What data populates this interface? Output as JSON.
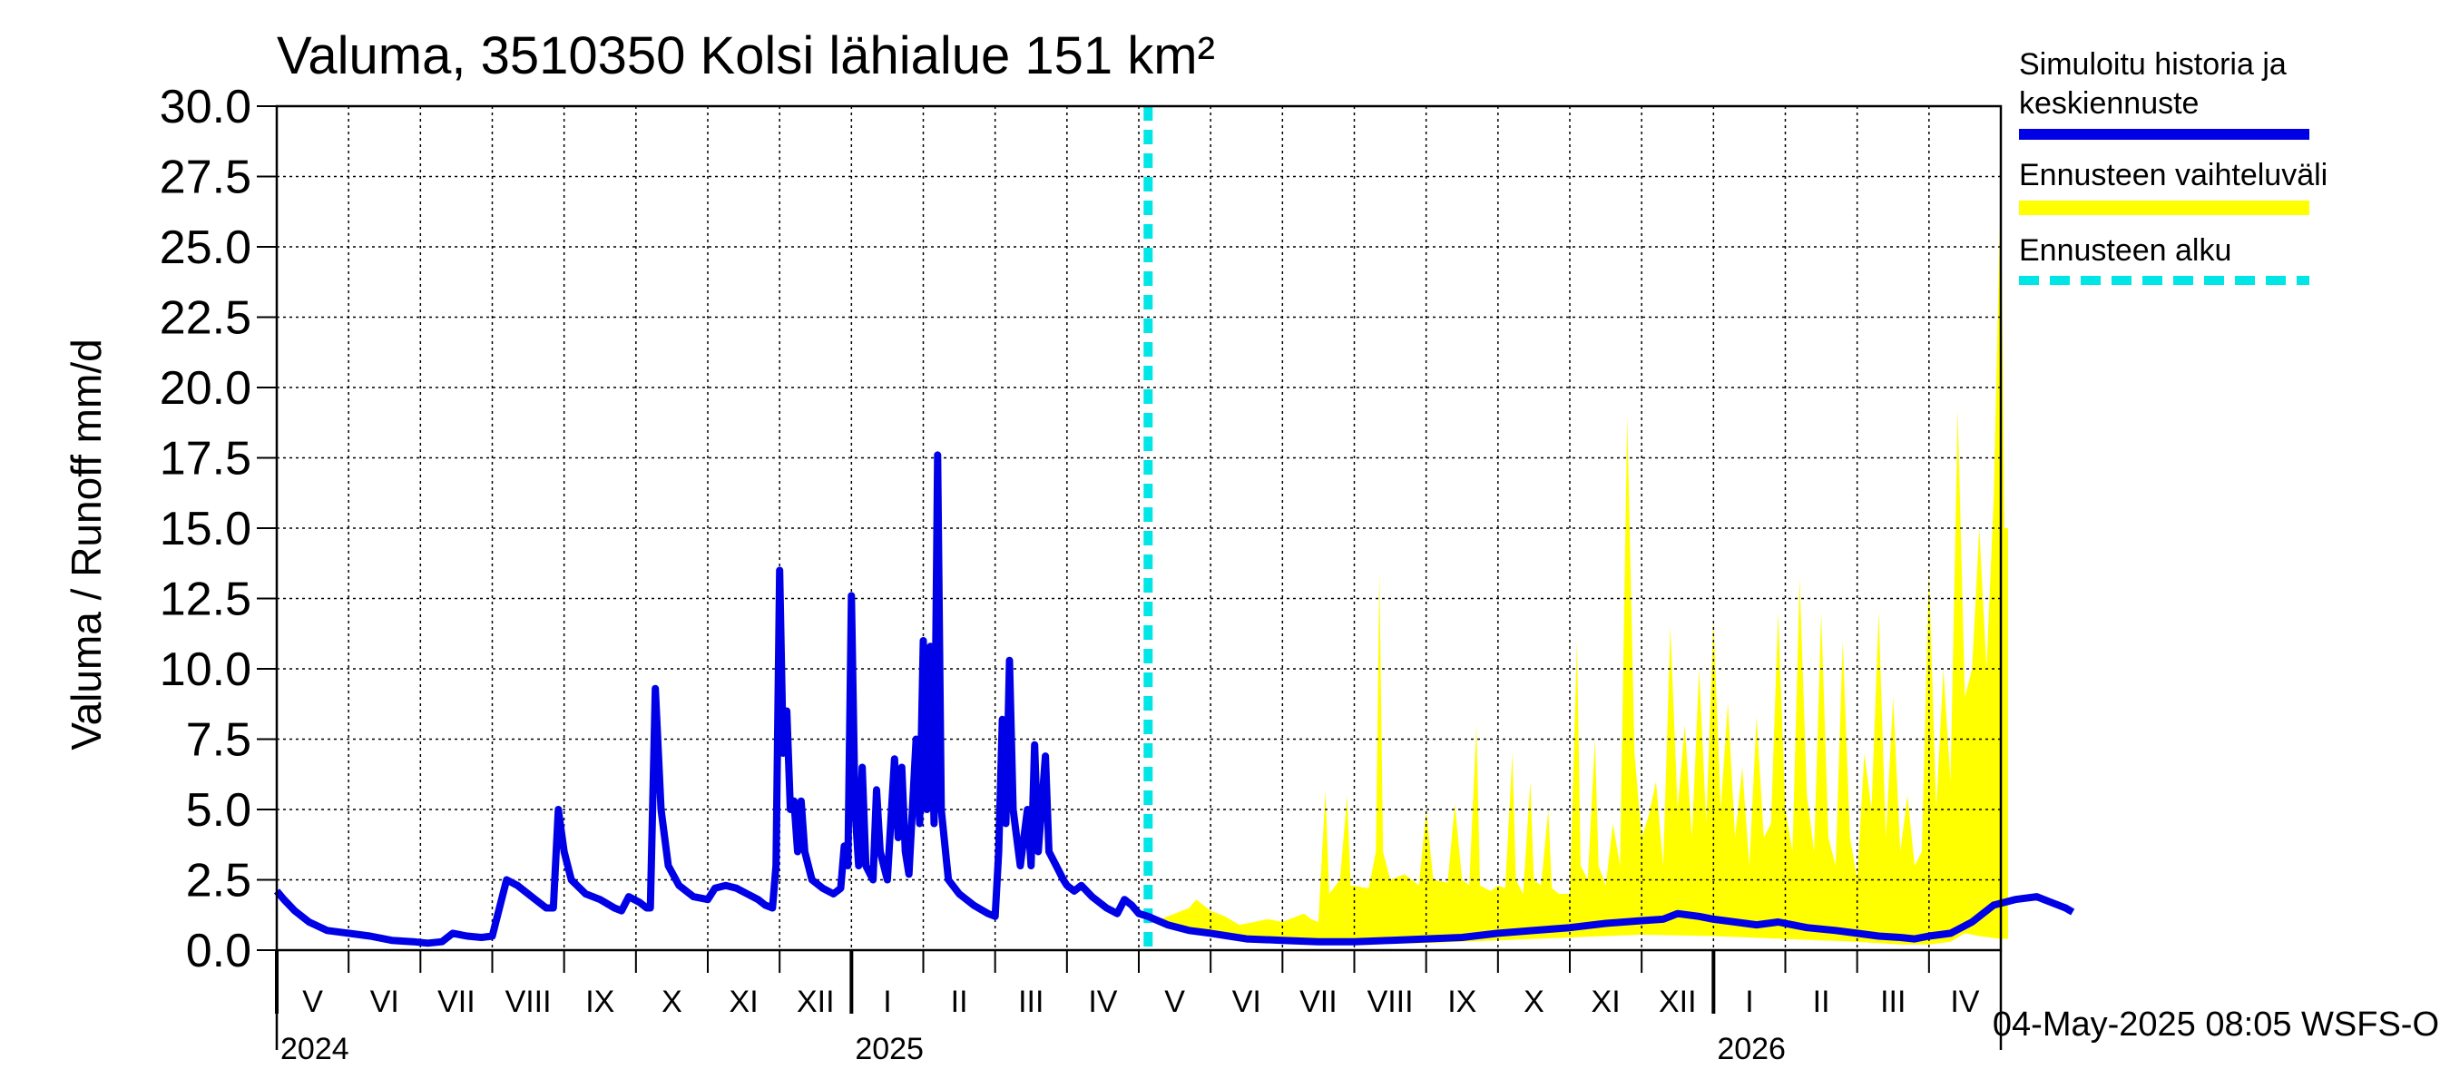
{
  "title": "Valuma, 3510350 Kolsi lähialue 151 km²",
  "ylabel": "Valuma / Runoff     mm/d",
  "footer": "04-May-2025 08:05 WSFS-O",
  "legend": [
    {
      "label": "Simuloitu historia ja\nkeskiennuste",
      "color": "#0000e6",
      "style": "solid"
    },
    {
      "label": "Ennusteen vaihteluväli",
      "color": "#ffff00",
      "style": "solid"
    },
    {
      "label": "Ennusteen alku",
      "color": "#00e5e5",
      "style": "dashed"
    }
  ],
  "colors": {
    "history": "#0000e6",
    "range": "#ffff00",
    "forecast_start": "#00e5e5",
    "grid": "#000000"
  },
  "chart_data": {
    "type": "area",
    "ylim": [
      0,
      30
    ],
    "yticks": [
      "0.0",
      "2.5",
      "5.0",
      "7.5",
      "10.0",
      "12.5",
      "15.0",
      "17.5",
      "20.0",
      "22.5",
      "25.0",
      "27.5",
      "30.0"
    ],
    "months": [
      "V",
      "VI",
      "VII",
      "VIII",
      "IX",
      "X",
      "XI",
      "XII",
      "I",
      "II",
      "III",
      "IV",
      "V",
      "VI",
      "VII",
      "VIII",
      "IX",
      "X",
      "XI",
      "XII",
      "I",
      "II",
      "III",
      "IV"
    ],
    "years": [
      {
        "label": "2024",
        "month_index": 0
      },
      {
        "label": "2025",
        "month_index": 8
      },
      {
        "label": "2026",
        "month_index": 20
      }
    ],
    "forecast_start": "2025-05-04",
    "grid": true,
    "legend_position": "right",
    "series": [
      {
        "name": "Simuloitu historia ja keskiennuste",
        "points": [
          [
            0,
            2.1
          ],
          [
            0.1,
            1.8
          ],
          [
            0.25,
            1.4
          ],
          [
            0.45,
            1.0
          ],
          [
            0.7,
            0.7
          ],
          [
            1.0,
            0.6
          ],
          [
            1.3,
            0.5
          ],
          [
            1.6,
            0.35
          ],
          [
            1.9,
            0.3
          ],
          [
            2.1,
            0.25
          ],
          [
            2.3,
            0.3
          ],
          [
            2.45,
            0.6
          ],
          [
            2.65,
            0.5
          ],
          [
            2.85,
            0.45
          ],
          [
            3.0,
            0.5
          ],
          [
            3.1,
            1.5
          ],
          [
            3.2,
            2.5
          ],
          [
            3.35,
            2.3
          ],
          [
            3.55,
            1.9
          ],
          [
            3.75,
            1.5
          ],
          [
            3.85,
            1.5
          ],
          [
            3.92,
            5.0
          ],
          [
            4.0,
            3.5
          ],
          [
            4.1,
            2.5
          ],
          [
            4.3,
            2.0
          ],
          [
            4.5,
            1.8
          ],
          [
            4.7,
            1.5
          ],
          [
            4.8,
            1.4
          ],
          [
            4.9,
            1.9
          ],
          [
            5.05,
            1.7
          ],
          [
            5.15,
            1.5
          ],
          [
            5.2,
            1.5
          ],
          [
            5.27,
            9.3
          ],
          [
            5.35,
            5.0
          ],
          [
            5.45,
            3.0
          ],
          [
            5.6,
            2.3
          ],
          [
            5.8,
            1.9
          ],
          [
            6.0,
            1.8
          ],
          [
            6.1,
            2.2
          ],
          [
            6.25,
            2.3
          ],
          [
            6.4,
            2.2
          ],
          [
            6.55,
            2.0
          ],
          [
            6.7,
            1.8
          ],
          [
            6.8,
            1.6
          ],
          [
            6.9,
            1.5
          ],
          [
            6.95,
            3.0
          ],
          [
            7.0,
            13.5
          ],
          [
            7.05,
            7.0
          ],
          [
            7.1,
            8.5
          ],
          [
            7.15,
            5.0
          ],
          [
            7.2,
            5.3
          ],
          [
            7.25,
            3.5
          ],
          [
            7.3,
            5.3
          ],
          [
            7.35,
            3.5
          ],
          [
            7.45,
            2.5
          ],
          [
            7.6,
            2.2
          ],
          [
            7.75,
            2.0
          ],
          [
            7.85,
            2.2
          ],
          [
            7.9,
            3.7
          ],
          [
            7.95,
            3.0
          ],
          [
            8.0,
            12.6
          ],
          [
            8.05,
            5.0
          ],
          [
            8.1,
            3.0
          ],
          [
            8.15,
            6.5
          ],
          [
            8.2,
            3.0
          ],
          [
            8.3,
            2.5
          ],
          [
            8.35,
            5.7
          ],
          [
            8.4,
            3.5
          ],
          [
            8.5,
            2.5
          ],
          [
            8.6,
            6.8
          ],
          [
            8.65,
            4.0
          ],
          [
            8.7,
            6.5
          ],
          [
            8.75,
            3.5
          ],
          [
            8.8,
            2.7
          ],
          [
            8.9,
            7.5
          ],
          [
            8.95,
            4.5
          ],
          [
            9.0,
            11.0
          ],
          [
            9.05,
            5.0
          ],
          [
            9.1,
            10.8
          ],
          [
            9.15,
            4.5
          ],
          [
            9.2,
            17.6
          ],
          [
            9.25,
            5.0
          ],
          [
            9.35,
            2.5
          ],
          [
            9.5,
            2.0
          ],
          [
            9.7,
            1.6
          ],
          [
            9.9,
            1.3
          ],
          [
            10.0,
            1.2
          ],
          [
            10.05,
            3.5
          ],
          [
            10.1,
            8.2
          ],
          [
            10.15,
            4.5
          ],
          [
            10.2,
            10.3
          ],
          [
            10.25,
            5.0
          ],
          [
            10.35,
            3.0
          ],
          [
            10.45,
            5.0
          ],
          [
            10.5,
            3.0
          ],
          [
            10.55,
            7.3
          ],
          [
            10.6,
            3.5
          ],
          [
            10.7,
            6.9
          ],
          [
            10.75,
            3.5
          ],
          [
            10.85,
            3.0
          ],
          [
            10.95,
            2.5
          ],
          [
            11.0,
            2.3
          ],
          [
            11.1,
            2.1
          ],
          [
            11.2,
            2.3
          ],
          [
            11.35,
            1.9
          ],
          [
            11.55,
            1.5
          ],
          [
            11.7,
            1.3
          ],
          [
            11.8,
            1.8
          ],
          [
            11.9,
            1.6
          ],
          [
            12.0,
            1.3
          ],
          [
            12.13,
            1.2
          ],
          [
            12.4,
            0.9
          ],
          [
            12.7,
            0.7
          ],
          [
            13.0,
            0.6
          ],
          [
            13.5,
            0.4
          ],
          [
            14.0,
            0.35
          ],
          [
            14.5,
            0.3
          ],
          [
            15.0,
            0.3
          ],
          [
            15.5,
            0.35
          ],
          [
            16.0,
            0.4
          ],
          [
            16.5,
            0.45
          ],
          [
            17.0,
            0.6
          ],
          [
            17.5,
            0.7
          ],
          [
            18.0,
            0.8
          ],
          [
            18.5,
            0.95
          ],
          [
            19.0,
            1.05
          ],
          [
            19.3,
            1.1
          ],
          [
            19.5,
            1.3
          ],
          [
            19.8,
            1.2
          ],
          [
            20.0,
            1.1
          ],
          [
            20.3,
            1.0
          ],
          [
            20.6,
            0.9
          ],
          [
            20.9,
            1.0
          ],
          [
            21.1,
            0.9
          ],
          [
            21.3,
            0.8
          ],
          [
            21.7,
            0.7
          ],
          [
            22.0,
            0.6
          ],
          [
            22.3,
            0.5
          ],
          [
            22.6,
            0.45
          ],
          [
            22.8,
            0.4
          ],
          [
            23.0,
            0.5
          ],
          [
            23.3,
            0.6
          ],
          [
            23.6,
            1.0
          ],
          [
            23.9,
            1.6
          ],
          [
            24.2,
            1.8
          ],
          [
            24.5,
            1.9
          ],
          [
            24.7,
            1.7
          ],
          [
            24.9,
            1.5
          ],
          [
            25.0,
            1.35
          ]
        ]
      },
      {
        "name": "Ennusteen vaihteluväli",
        "upper": [
          [
            12.13,
            1.2
          ],
          [
            12.3,
            1.1
          ],
          [
            12.5,
            1.3
          ],
          [
            12.7,
            1.5
          ],
          [
            12.8,
            1.8
          ],
          [
            12.9,
            1.6
          ],
          [
            13.0,
            1.4
          ],
          [
            13.2,
            1.2
          ],
          [
            13.4,
            0.9
          ],
          [
            13.6,
            1.0
          ],
          [
            13.8,
            1.1
          ],
          [
            14.0,
            1.0
          ],
          [
            14.2,
            1.2
          ],
          [
            14.3,
            1.3
          ],
          [
            14.4,
            1.1
          ],
          [
            14.5,
            1.0
          ],
          [
            14.6,
            5.7
          ],
          [
            14.65,
            2.0
          ],
          [
            14.8,
            2.5
          ],
          [
            14.9,
            5.5
          ],
          [
            14.95,
            2.3
          ],
          [
            15.2,
            2.2
          ],
          [
            15.3,
            3.5
          ],
          [
            15.35,
            13.4
          ],
          [
            15.4,
            3.5
          ],
          [
            15.5,
            2.5
          ],
          [
            15.7,
            2.7
          ],
          [
            15.9,
            2.3
          ],
          [
            16.0,
            5.0
          ],
          [
            16.1,
            2.5
          ],
          [
            16.3,
            2.4
          ],
          [
            16.4,
            5.2
          ],
          [
            16.5,
            2.5
          ],
          [
            16.6,
            2.3
          ],
          [
            16.7,
            8.0
          ],
          [
            16.75,
            2.3
          ],
          [
            16.9,
            2.1
          ],
          [
            17.0,
            2.3
          ],
          [
            17.1,
            2.2
          ],
          [
            17.2,
            7.0
          ],
          [
            17.25,
            2.5
          ],
          [
            17.35,
            2.0
          ],
          [
            17.45,
            6.0
          ],
          [
            17.5,
            2.5
          ],
          [
            17.6,
            2.3
          ],
          [
            17.7,
            5.0
          ],
          [
            17.75,
            2.2
          ],
          [
            17.85,
            2.0
          ],
          [
            18.0,
            2.0
          ],
          [
            18.1,
            11.0
          ],
          [
            18.15,
            3.0
          ],
          [
            18.25,
            2.5
          ],
          [
            18.35,
            7.5
          ],
          [
            18.4,
            3.0
          ],
          [
            18.5,
            2.3
          ],
          [
            18.6,
            4.5
          ],
          [
            18.7,
            3.0
          ],
          [
            18.8,
            19.0
          ],
          [
            18.9,
            7.0
          ],
          [
            19.0,
            4.0
          ],
          [
            19.1,
            4.8
          ],
          [
            19.2,
            6.0
          ],
          [
            19.3,
            3.0
          ],
          [
            19.4,
            11.5
          ],
          [
            19.5,
            5.0
          ],
          [
            19.6,
            8.0
          ],
          [
            19.7,
            4.0
          ],
          [
            19.8,
            10.0
          ],
          [
            19.9,
            4.5
          ],
          [
            20.0,
            11.8
          ],
          [
            20.1,
            5.0
          ],
          [
            20.2,
            8.8
          ],
          [
            20.3,
            4.0
          ],
          [
            20.4,
            6.5
          ],
          [
            20.5,
            3.0
          ],
          [
            20.6,
            8.3
          ],
          [
            20.7,
            4.0
          ],
          [
            20.8,
            4.5
          ],
          [
            20.9,
            12.0
          ],
          [
            21.0,
            5.0
          ],
          [
            21.1,
            3.5
          ],
          [
            21.2,
            13.2
          ],
          [
            21.3,
            5.5
          ],
          [
            21.4,
            3.5
          ],
          [
            21.5,
            12.0
          ],
          [
            21.6,
            4.0
          ],
          [
            21.7,
            3.0
          ],
          [
            21.8,
            11.0
          ],
          [
            21.9,
            4.0
          ],
          [
            22.0,
            2.5
          ],
          [
            22.1,
            7.0
          ],
          [
            22.2,
            5.0
          ],
          [
            22.3,
            12.0
          ],
          [
            22.4,
            4.0
          ],
          [
            22.5,
            9.0
          ],
          [
            22.6,
            3.5
          ],
          [
            22.7,
            5.5
          ],
          [
            22.8,
            3.0
          ],
          [
            22.9,
            3.5
          ],
          [
            23.0,
            13.5
          ],
          [
            23.1,
            5.0
          ],
          [
            23.2,
            10.0
          ],
          [
            23.3,
            6.0
          ],
          [
            23.4,
            19.2
          ],
          [
            23.5,
            9.0
          ],
          [
            23.6,
            10.0
          ],
          [
            23.7,
            15.0
          ],
          [
            23.8,
            10.0
          ],
          [
            23.9,
            16.0
          ],
          [
            24.0,
            27.3
          ],
          [
            24.05,
            15.0
          ],
          [
            24.1,
            15.0
          ]
        ],
        "lower": [
          [
            12.13,
            1.2
          ],
          [
            12.5,
            0.8
          ],
          [
            13.0,
            0.5
          ],
          [
            13.5,
            0.35
          ],
          [
            14.0,
            0.3
          ],
          [
            15.0,
            0.2
          ],
          [
            16.0,
            0.25
          ],
          [
            17.0,
            0.35
          ],
          [
            18.0,
            0.45
          ],
          [
            19.0,
            0.55
          ],
          [
            20.0,
            0.5
          ],
          [
            21.0,
            0.4
          ],
          [
            22.0,
            0.3
          ],
          [
            22.6,
            0.2
          ],
          [
            23.0,
            0.2
          ],
          [
            23.3,
            0.3
          ],
          [
            23.5,
            0.6
          ],
          [
            23.7,
            0.5
          ],
          [
            24.0,
            0.4
          ],
          [
            24.1,
            0.4
          ]
        ]
      }
    ]
  }
}
